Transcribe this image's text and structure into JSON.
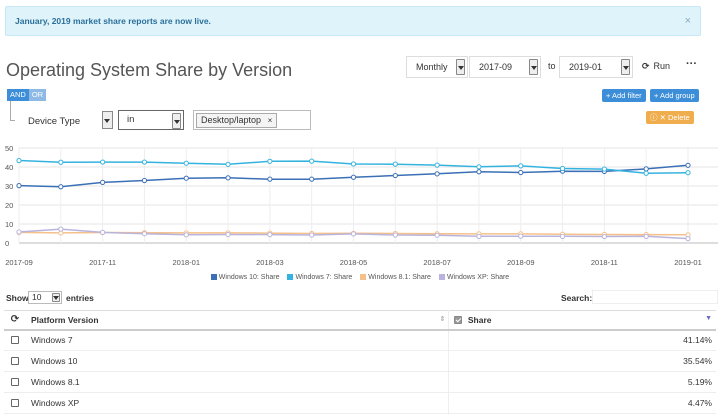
{
  "notice": {
    "text": "January, 2019 market share reports are now live.",
    "close": "×"
  },
  "title": "Operating System Share by Version",
  "controls": {
    "interval": "Monthly",
    "from": "2017-09",
    "to_label": "to",
    "to": "2019-01",
    "run_label": "Run",
    "more": "···"
  },
  "logic": {
    "and": "AND",
    "or": "OR"
  },
  "buttons": {
    "add_filter": "+ Add filter",
    "add_group": "+ Add group",
    "delete": "ⓘ ✕ Delete"
  },
  "filter": {
    "field": "Device Type",
    "operator": "in",
    "value_tag": "Desktop/laptop",
    "tag_remove": "×"
  },
  "chart_data": {
    "type": "line",
    "x": [
      "2017-09",
      "2017-10",
      "2017-11",
      "2017-12",
      "2018-01",
      "2018-02",
      "2018-03",
      "2018-04",
      "2018-05",
      "2018-06",
      "2018-07",
      "2018-08",
      "2018-09",
      "2018-10",
      "2018-11",
      "2018-12",
      "2019-01"
    ],
    "x_tick_labels": [
      "2017-09",
      "2017-11",
      "2018-01",
      "2018-03",
      "2018-05",
      "2018-07",
      "2018-09",
      "2018-11",
      "2019-01"
    ],
    "ylim": [
      0,
      50
    ],
    "y_ticks": [
      0,
      10,
      20,
      30,
      40,
      50
    ],
    "grid": true,
    "legend": "bottom",
    "series": [
      {
        "name": "Windows 10: Share",
        "color": "#3b6fb6",
        "values": [
          30.2,
          29.6,
          31.9,
          32.9,
          34.1,
          34.3,
          33.6,
          33.6,
          34.6,
          35.5,
          36.4,
          37.5,
          37.1,
          37.8,
          37.7,
          39.0,
          40.9
        ]
      },
      {
        "name": "Windows 7: Share",
        "color": "#35b3e0",
        "values": [
          43.4,
          42.5,
          42.6,
          42.6,
          42.0,
          41.4,
          43.0,
          43.1,
          41.6,
          41.5,
          41.0,
          40.1,
          40.6,
          39.2,
          38.9,
          36.7,
          37.0
        ]
      },
      {
        "name": "Windows 8.1: Share",
        "color": "#f5c08a",
        "values": [
          5.6,
          5.3,
          5.5,
          5.4,
          5.3,
          5.3,
          5.2,
          5.0,
          5.1,
          5.0,
          4.9,
          4.8,
          4.8,
          4.6,
          4.5,
          4.4,
          4.3
        ]
      },
      {
        "name": "Windows XP: Share",
        "color": "#b9b4dc",
        "values": [
          5.8,
          7.3,
          5.6,
          4.9,
          4.3,
          4.5,
          4.4,
          4.2,
          4.8,
          4.2,
          4.1,
          3.5,
          3.6,
          3.5,
          3.4,
          3.5,
          2.3
        ]
      }
    ]
  },
  "table": {
    "show_label": "Show",
    "page_size": "10",
    "entries_label": "entries",
    "search_label": "Search:",
    "headers": {
      "platform": "Platform Version",
      "share": "Share"
    },
    "rows": [
      {
        "platform": "Windows 7",
        "share": "41.14%"
      },
      {
        "platform": "Windows 10",
        "share": "35.54%"
      },
      {
        "platform": "Windows 8.1",
        "share": "5.19%"
      },
      {
        "platform": "Windows XP",
        "share": "4.47%"
      }
    ]
  }
}
